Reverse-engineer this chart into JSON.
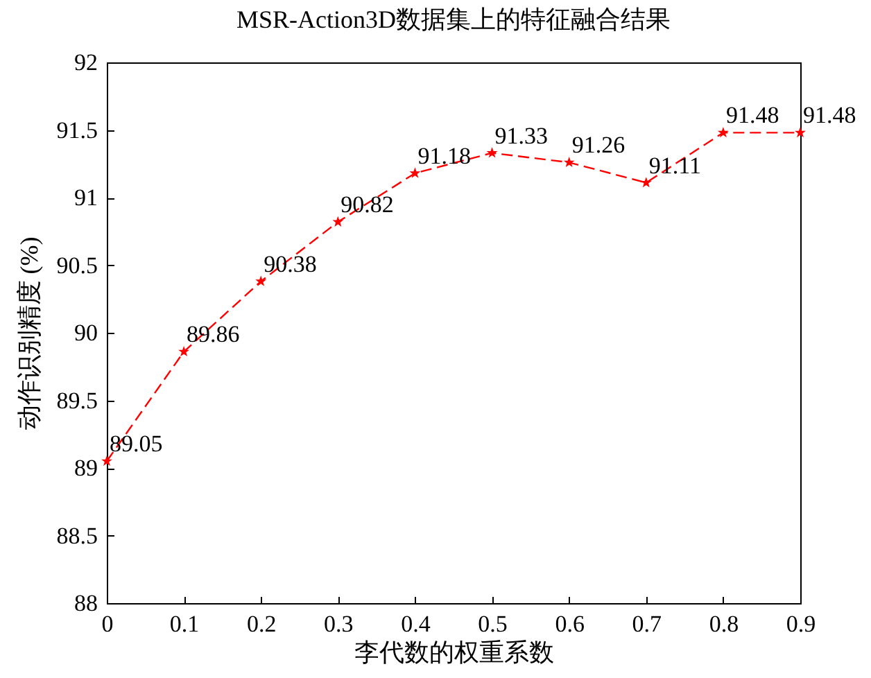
{
  "chart_data": {
    "type": "line",
    "title": "MSR-Action3D数据集上的特征融合结果",
    "xlabel": "李代数的权重系数",
    "ylabel": "动作识别精度 (%)",
    "x": [
      0,
      0.1,
      0.2,
      0.3,
      0.4,
      0.5,
      0.6,
      0.7,
      0.8,
      0.9
    ],
    "series": [
      {
        "color": "#ff0000",
        "values": [
          89.05,
          89.86,
          90.38,
          90.82,
          91.18,
          91.33,
          91.26,
          91.11,
          91.48,
          91.48
        ]
      }
    ],
    "xlim": [
      0,
      0.9
    ],
    "xticks": [
      0,
      0.1,
      0.2,
      0.3,
      0.4,
      0.5,
      0.6,
      0.7,
      0.8,
      0.9
    ],
    "ylim": [
      88,
      92
    ],
    "yticks": [
      88,
      88.5,
      89,
      89.5,
      90,
      90.5,
      91,
      91.5,
      92
    ],
    "grid": false,
    "marker": "star",
    "line_style": "dashed",
    "data_labels": true
  }
}
